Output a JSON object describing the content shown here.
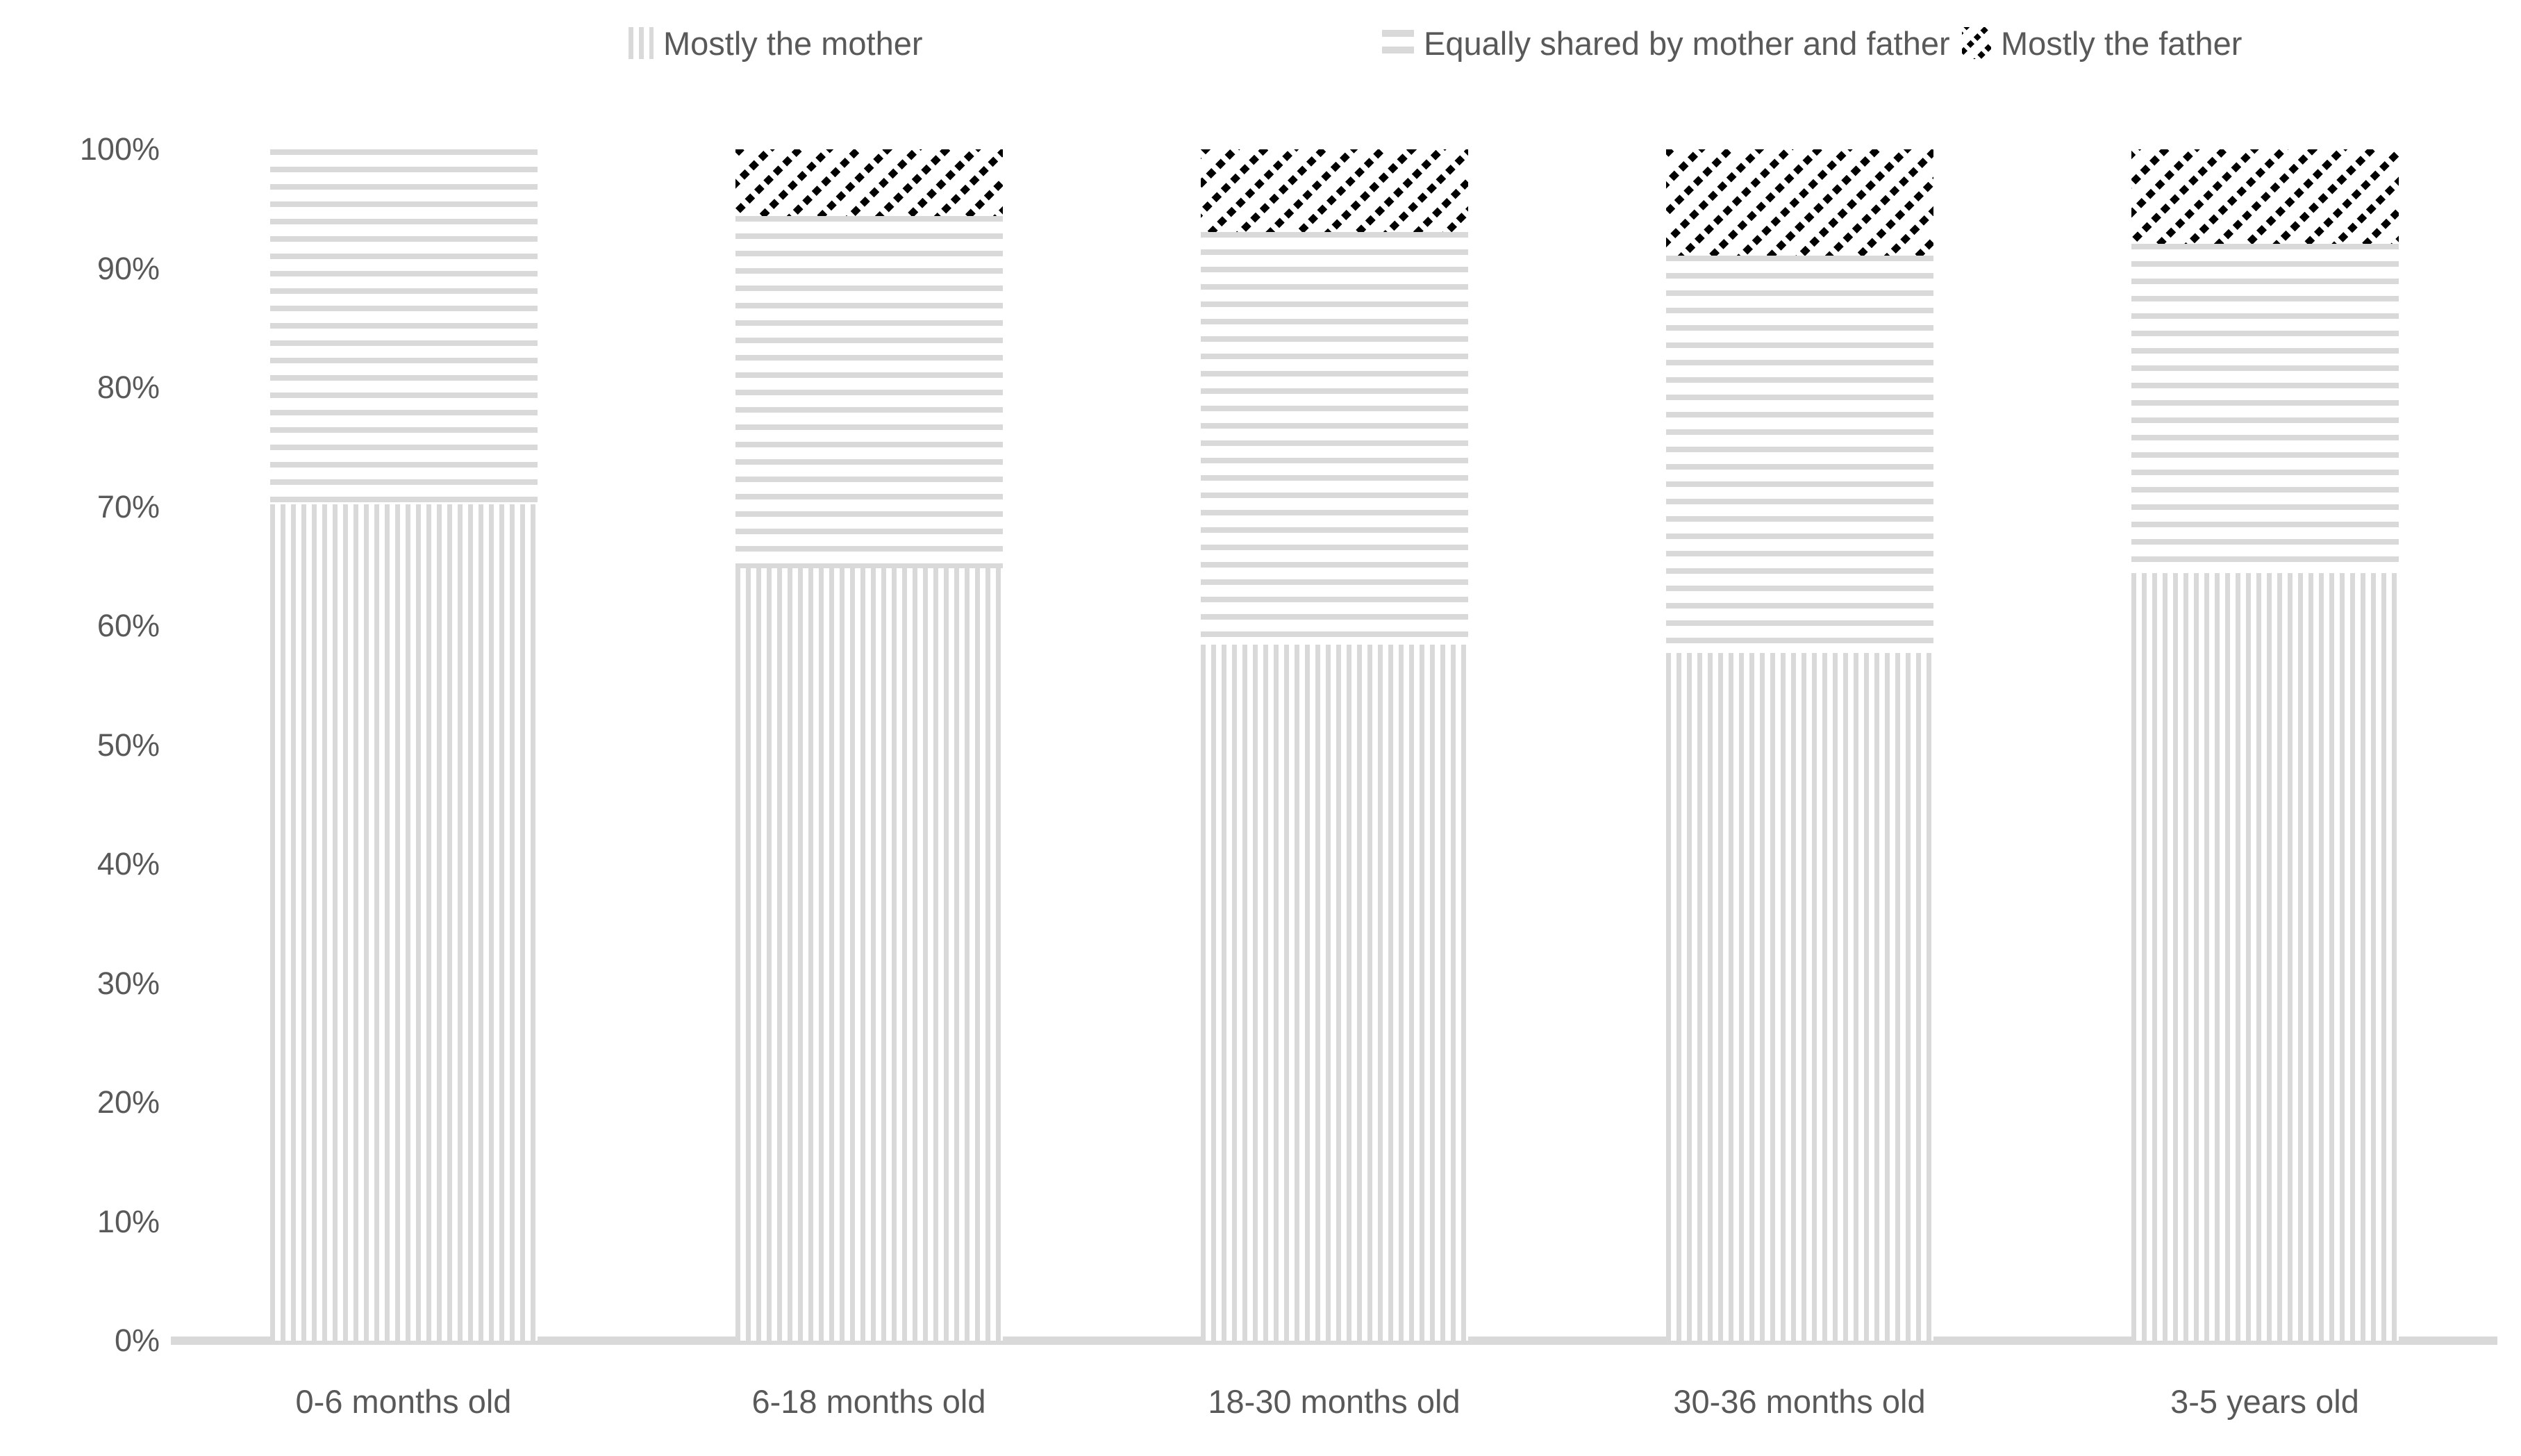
{
  "chart_data": {
    "type": "bar",
    "stacking": "percent",
    "title": "",
    "xlabel": "",
    "ylabel": "",
    "categories": [
      "0-6 months old",
      "6-18 months old",
      "18-30 months old",
      "30-36 months old",
      "3-5 years old"
    ],
    "series": [
      {
        "name": "Mostly the mother",
        "pattern": "vertical-stripes",
        "values": [
          33,
          498,
          329,
          149,
          422
        ]
      },
      {
        "name": "Equally shared by mother and father",
        "pattern": "horizontal-stripes",
        "values": [
          14,
          227,
          195,
          86,
          181
        ]
      },
      {
        "name": "Mostly the father",
        "pattern": "diagonal-hatch",
        "values": [
          0,
          43,
          39,
          23,
          52
        ]
      }
    ],
    "y_axis": {
      "tick_labels": [
        "0%",
        "10%",
        "20%",
        "30%",
        "40%",
        "50%",
        "60%",
        "70%",
        "80%",
        "90%",
        "100%"
      ],
      "min_pct": 0,
      "max_pct": 100
    },
    "data_labels_shown": true,
    "legend_position": "top",
    "grid": "off",
    "colors": {
      "stripe_gray": "#d9d9d9",
      "hatch_black": "#000000",
      "data_label_text": "#404040",
      "axis_text": "#595959",
      "axis_line": "#d9d9d9",
      "background": "#ffffff"
    }
  }
}
